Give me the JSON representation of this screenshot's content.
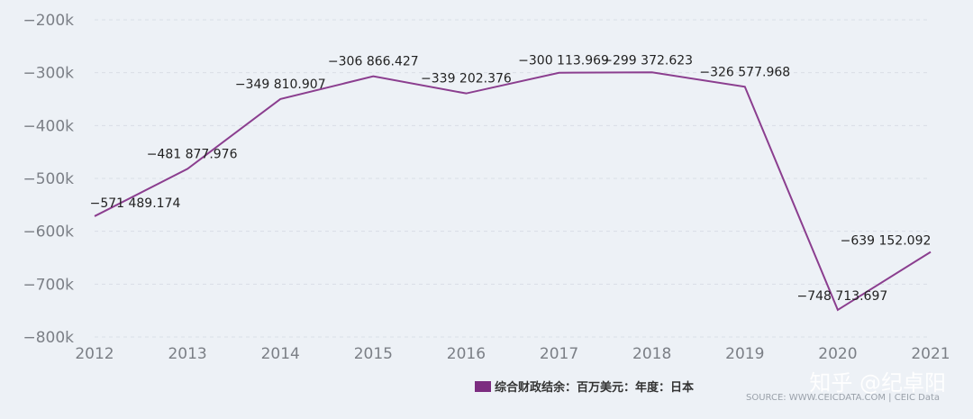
{
  "chart_data": {
    "type": "line",
    "categories": [
      "2012",
      "2013",
      "2014",
      "2015",
      "2016",
      "2017",
      "2018",
      "2019",
      "2020",
      "2021"
    ],
    "series": [
      {
        "name": "综合财政结余：百万美元：年度：日本",
        "values": [
          -571489.174,
          -481877.976,
          -349810.907,
          -306866.427,
          -339202.376,
          -300113.969,
          -299372.623,
          -326577.968,
          -748713.697,
          -639152.092
        ],
        "labels": [
          "−571 489.174",
          "−481 877.976",
          "−349 810.907",
          "−306 866.427",
          "−339 202.376",
          "−300 113.969",
          "−299 372.623",
          "−326 577.968",
          "−748 713.697",
          "−639 152.092"
        ]
      }
    ],
    "y_ticks": [
      -200000,
      -300000,
      -400000,
      -500000,
      -600000,
      -700000,
      -800000
    ],
    "y_tick_labels": [
      "−200k",
      "−300k",
      "−400k",
      "−500k",
      "−600k",
      "−700k",
      "−800k"
    ],
    "ylim": [
      -800000,
      -200000
    ],
    "grid": true,
    "legend_position": "bottom-right",
    "line_color": "#8b3e8f",
    "legend_color": "#7c2d80"
  },
  "source": "SOURCE: WWW.CEICDATA.COM | CEIC Data",
  "watermark": "知乎 @纪卓阳"
}
